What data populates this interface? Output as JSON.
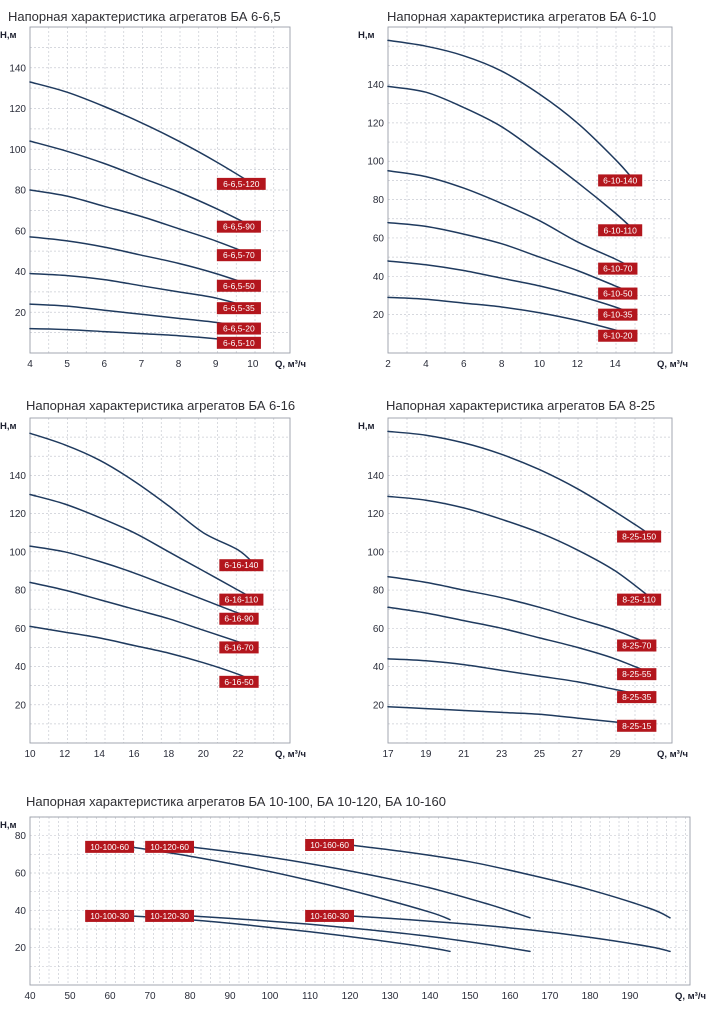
{
  "colors": {
    "curve": "#1f3a5e",
    "grid": "#c9ccd3",
    "label_bg": "#b3161d",
    "label_text": "#ffffff",
    "axis": "#9a9ea8"
  },
  "chart_data": [
    {
      "type": "line",
      "title": "Напорная характеристика агрегатов БА 6-6,5",
      "xlabel": "Q, м³/ч",
      "ylabel": "H,м",
      "xlim": [
        4,
        11
      ],
      "ylim": [
        0,
        160
      ],
      "xticks": [
        4,
        5,
        6,
        7,
        8,
        9,
        10
      ],
      "yticks": [
        20,
        40,
        60,
        80,
        100,
        120,
        140
      ],
      "grid": true,
      "series": [
        {
          "name": "6-6,5-120",
          "x": [
            4,
            5,
            6,
            7,
            8,
            9,
            10
          ],
          "y": [
            133,
            128,
            121,
            113,
            104,
            94,
            83
          ]
        },
        {
          "name": "6-6,5-90",
          "x": [
            4,
            5,
            6,
            7,
            8,
            9,
            10
          ],
          "y": [
            104,
            99,
            93,
            86,
            79,
            71,
            62
          ]
        },
        {
          "name": "6-6,5-70",
          "x": [
            4,
            5,
            6,
            7,
            8,
            9,
            10
          ],
          "y": [
            80,
            77,
            72,
            67,
            61,
            55,
            48
          ]
        },
        {
          "name": "6-6,5-50",
          "x": [
            4,
            5,
            6,
            7,
            8,
            9,
            10
          ],
          "y": [
            57,
            55,
            52,
            48,
            44,
            39,
            33
          ]
        },
        {
          "name": "6-6,5-35",
          "x": [
            4,
            5,
            6,
            7,
            8,
            9,
            10
          ],
          "y": [
            39,
            38,
            36,
            33,
            30,
            27,
            22
          ]
        },
        {
          "name": "6-6,5-20",
          "x": [
            4,
            5,
            6,
            7,
            8,
            9,
            10
          ],
          "y": [
            24,
            23,
            21,
            19,
            17,
            15,
            12
          ]
        },
        {
          "name": "6-6,5-10",
          "x": [
            4,
            5,
            6,
            7,
            8,
            9,
            10
          ],
          "y": [
            12,
            11.5,
            10.5,
            9.5,
            8.5,
            7,
            5
          ]
        }
      ]
    },
    {
      "type": "line",
      "title": "Напорная характеристика агрегатов БА 6-10",
      "xlabel": "Q, м³/ч",
      "ylabel": "H,м",
      "xlim": [
        2,
        17
      ],
      "ylim": [
        0,
        170
      ],
      "xticks": [
        2,
        4,
        6,
        8,
        10,
        12,
        14
      ],
      "yticks": [
        20,
        40,
        60,
        80,
        100,
        120,
        140
      ],
      "grid": true,
      "series": [
        {
          "name": "6-10-140",
          "x": [
            2,
            4,
            6,
            8,
            10,
            12,
            14,
            15
          ],
          "y": [
            163,
            160,
            155,
            147,
            135,
            120,
            101,
            90
          ]
        },
        {
          "name": "6-10-110",
          "x": [
            2,
            4,
            6,
            8,
            10,
            12,
            14,
            15
          ],
          "y": [
            139,
            136,
            128,
            118,
            104,
            89,
            73,
            64
          ]
        },
        {
          "name": "6-10-70",
          "x": [
            2,
            4,
            6,
            8,
            10,
            12,
            14,
            15
          ],
          "y": [
            95,
            92,
            86,
            78,
            69,
            58,
            49,
            44
          ]
        },
        {
          "name": "6-10-50",
          "x": [
            2,
            4,
            6,
            8,
            10,
            12,
            14,
            15
          ],
          "y": [
            68,
            66,
            62,
            57,
            50,
            43,
            35,
            31
          ]
        },
        {
          "name": "6-10-35",
          "x": [
            2,
            4,
            6,
            8,
            10,
            12,
            14,
            15
          ],
          "y": [
            48,
            46,
            43,
            39,
            35,
            30,
            24,
            20
          ]
        },
        {
          "name": "6-10-20",
          "x": [
            2,
            4,
            6,
            8,
            10,
            12,
            14,
            15
          ],
          "y": [
            29,
            28,
            26,
            24,
            21,
            17,
            12,
            9
          ]
        }
      ]
    },
    {
      "type": "line",
      "title": "Напорная характеристика агрегатов БА 6-16",
      "xlabel": "Q, м³/ч",
      "ylabel": "H,м",
      "xlim": [
        10,
        25
      ],
      "ylim": [
        0,
        170
      ],
      "xticks": [
        10,
        12,
        14,
        16,
        18,
        20,
        22
      ],
      "yticks": [
        20,
        40,
        60,
        80,
        100,
        120,
        140
      ],
      "grid": true,
      "series": [
        {
          "name": "6-16-140",
          "x": [
            10,
            12,
            14,
            16,
            18,
            20,
            22,
            23
          ],
          "y": [
            162,
            156,
            148,
            137,
            124,
            110,
            101,
            93
          ]
        },
        {
          "name": "6-16-110",
          "x": [
            10,
            12,
            14,
            16,
            18,
            20,
            22,
            23
          ],
          "y": [
            130,
            125,
            118,
            110,
            100,
            90,
            80,
            75
          ]
        },
        {
          "name": "6-16-90",
          "x": [
            10,
            12,
            14,
            16,
            18,
            20,
            22,
            23
          ],
          "y": [
            103,
            100,
            95,
            89,
            82,
            75,
            68,
            65
          ]
        },
        {
          "name": "6-16-70",
          "x": [
            10,
            12,
            14,
            16,
            18,
            20,
            22,
            23
          ],
          "y": [
            84,
            80,
            75,
            70,
            65,
            59,
            53,
            50
          ]
        },
        {
          "name": "6-16-50",
          "x": [
            10,
            12,
            14,
            16,
            18,
            20,
            22,
            23
          ],
          "y": [
            61,
            58,
            55,
            51,
            47,
            42,
            36,
            32
          ]
        }
      ]
    },
    {
      "type": "line",
      "title": "Напорная характеристика агрегатов БА 8-25",
      "xlabel": "Q, м³/ч",
      "ylabel": "H,м",
      "xlim": [
        17,
        32
      ],
      "ylim": [
        0,
        170
      ],
      "xticks": [
        17,
        19,
        21,
        23,
        25,
        27,
        29
      ],
      "yticks": [
        20,
        40,
        60,
        80,
        100,
        120,
        140
      ],
      "grid": true,
      "series": [
        {
          "name": "8-25-150",
          "x": [
            17,
            19,
            21,
            23,
            25,
            27,
            29,
            31
          ],
          "y": [
            163,
            161,
            157,
            151,
            143,
            133,
            121,
            108
          ]
        },
        {
          "name": "8-25-110",
          "x": [
            17,
            19,
            21,
            23,
            25,
            27,
            29,
            31
          ],
          "y": [
            129,
            127,
            123,
            117,
            110,
            101,
            90,
            75
          ]
        },
        {
          "name": "8-25-70",
          "x": [
            17,
            19,
            21,
            23,
            25,
            27,
            29,
            31
          ],
          "y": [
            87,
            84,
            80,
            76,
            71,
            65,
            59,
            51
          ]
        },
        {
          "name": "8-25-55",
          "x": [
            17,
            19,
            21,
            23,
            25,
            27,
            29,
            31
          ],
          "y": [
            71,
            68,
            64,
            60,
            55,
            50,
            44,
            36
          ]
        },
        {
          "name": "8-25-35",
          "x": [
            17,
            19,
            21,
            23,
            25,
            27,
            29,
            31
          ],
          "y": [
            44,
            43,
            41,
            38,
            35,
            32,
            28,
            24
          ]
        },
        {
          "name": "8-25-15",
          "x": [
            17,
            19,
            21,
            23,
            25,
            27,
            29,
            31
          ],
          "y": [
            19,
            18,
            17,
            16,
            15,
            13,
            11,
            9
          ]
        }
      ]
    },
    {
      "type": "line",
      "title": "Напорная характеристика агрегатов БА 10-100, БА 10-120, БА 10-160",
      "xlabel": "Q, м³/ч",
      "ylabel": "H,м",
      "xlim": [
        40,
        205
      ],
      "ylim": [
        0,
        90
      ],
      "xticks": [
        40,
        50,
        60,
        70,
        80,
        90,
        100,
        110,
        120,
        130,
        140,
        150,
        160,
        170,
        180,
        190
      ],
      "yticks": [
        20,
        40,
        60,
        80
      ],
      "grid": true,
      "series": [
        {
          "name": "10-100-60",
          "x": [
            65,
            80,
            95,
            110,
            125,
            140,
            145
          ],
          "y": [
            74,
            69,
            63,
            56,
            48,
            39,
            35
          ]
        },
        {
          "name": "10-120-60",
          "x": [
            80,
            95,
            110,
            125,
            140,
            155,
            165
          ],
          "y": [
            74,
            70,
            65,
            59,
            52,
            43,
            36
          ]
        },
        {
          "name": "10-160-60",
          "x": [
            120,
            135,
            150,
            165,
            180,
            195,
            200
          ],
          "y": [
            75,
            71,
            66,
            59,
            51,
            41,
            36
          ]
        },
        {
          "name": "10-100-30",
          "x": [
            65,
            80,
            95,
            110,
            125,
            140,
            145
          ],
          "y": [
            37,
            35,
            32,
            28.5,
            24.5,
            20,
            18
          ]
        },
        {
          "name": "10-120-30",
          "x": [
            80,
            95,
            110,
            125,
            140,
            155,
            165
          ],
          "y": [
            37,
            35,
            32.5,
            29.5,
            26,
            21.5,
            18
          ]
        },
        {
          "name": "10-160-30",
          "x": [
            120,
            135,
            150,
            165,
            180,
            195,
            200
          ],
          "y": [
            37,
            35,
            32.5,
            29.5,
            25.5,
            20.5,
            18
          ]
        }
      ]
    }
  ]
}
